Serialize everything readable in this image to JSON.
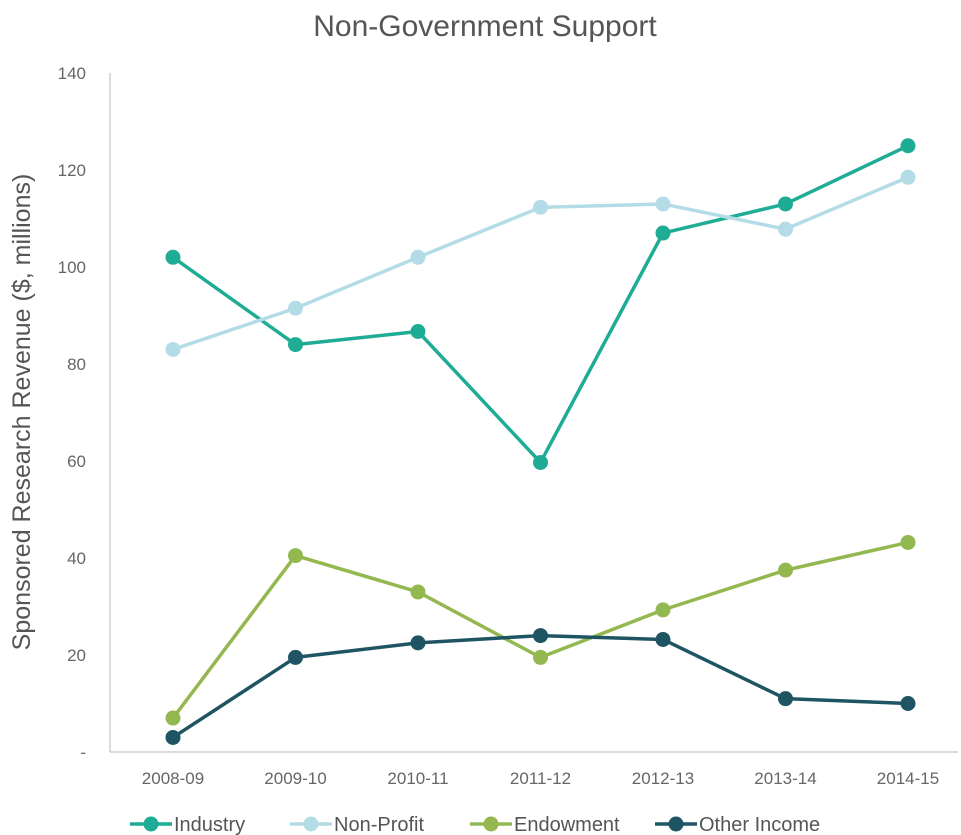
{
  "chart_data": {
    "type": "line",
    "title": "Non-Government Support",
    "xlabel": "",
    "ylabel": "Sponsored Research Revenue ($, millions)",
    "categories": [
      "2008-09",
      "2009-10",
      "2010-11",
      "2011-12",
      "2012-13",
      "2013-14",
      "2014-15"
    ],
    "ylim": [
      0,
      140
    ],
    "yticks": [
      "-",
      "20",
      "40",
      "60",
      "80",
      "100",
      "120",
      "140"
    ],
    "grid": false,
    "legend_position": "bottom",
    "series": [
      {
        "name": "Industry",
        "color": "#1fac95",
        "values": [
          102,
          84,
          86.7,
          59.7,
          107,
          113,
          125
        ]
      },
      {
        "name": "Non-Profit",
        "color": "#b4dce6",
        "values": [
          83,
          91.5,
          102,
          112.3,
          113,
          107.8,
          118.5
        ]
      },
      {
        "name": "Endowment",
        "color": "#93b850",
        "values": [
          7,
          40.5,
          33,
          19.5,
          29.3,
          37.5,
          43.2
        ]
      },
      {
        "name": "Other Income",
        "color": "#1f5563",
        "values": [
          3,
          19.5,
          22.5,
          24,
          23.2,
          11,
          10
        ]
      }
    ]
  }
}
